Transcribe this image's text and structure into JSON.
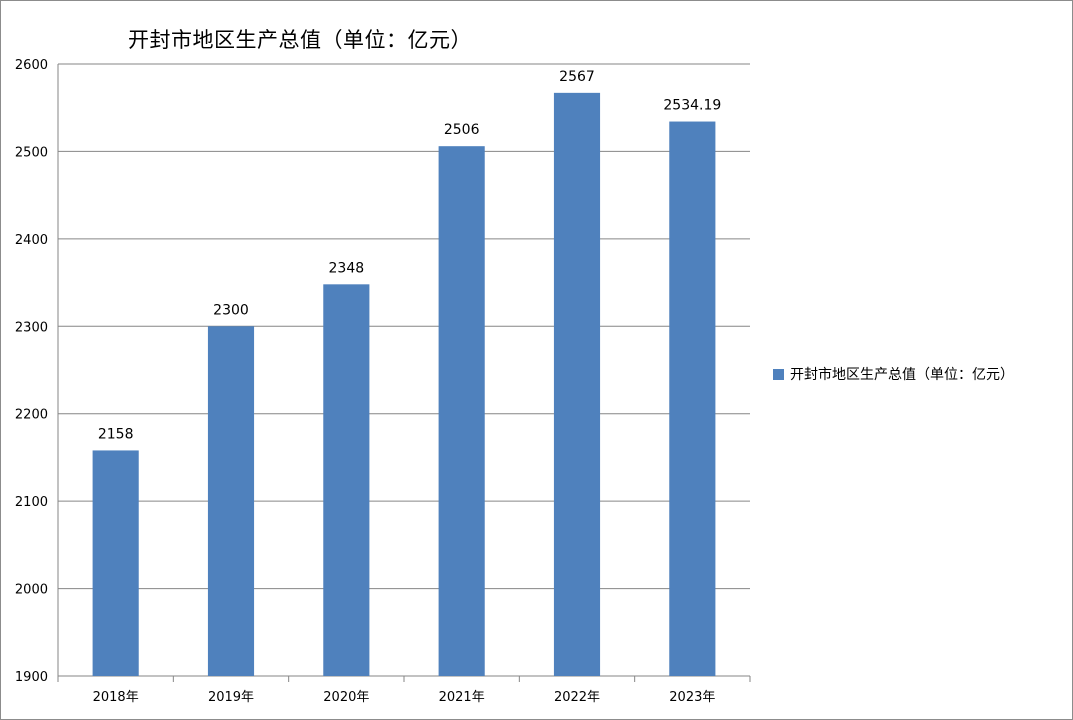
{
  "chart_data": {
    "type": "bar",
    "title": "开封市地区生产总值（单位：亿元）",
    "categories": [
      "2018年",
      "2019年",
      "2020年",
      "2021年",
      "2022年",
      "2023年"
    ],
    "series": [
      {
        "name": "开封市地区生产总值（单位：亿元）",
        "values": [
          2158,
          2300,
          2348,
          2506,
          2567,
          2534.19
        ],
        "data_labels": [
          "2158",
          "2300",
          "2348",
          "2506",
          "2567",
          "2534.19"
        ],
        "color": "#4f81bd"
      }
    ],
    "ylim": [
      1900,
      2600
    ],
    "yticks": [
      "1900",
      "2000",
      "2100",
      "2200",
      "2300",
      "2400",
      "2500",
      "2600"
    ],
    "grid": true,
    "legend_position": "right"
  }
}
